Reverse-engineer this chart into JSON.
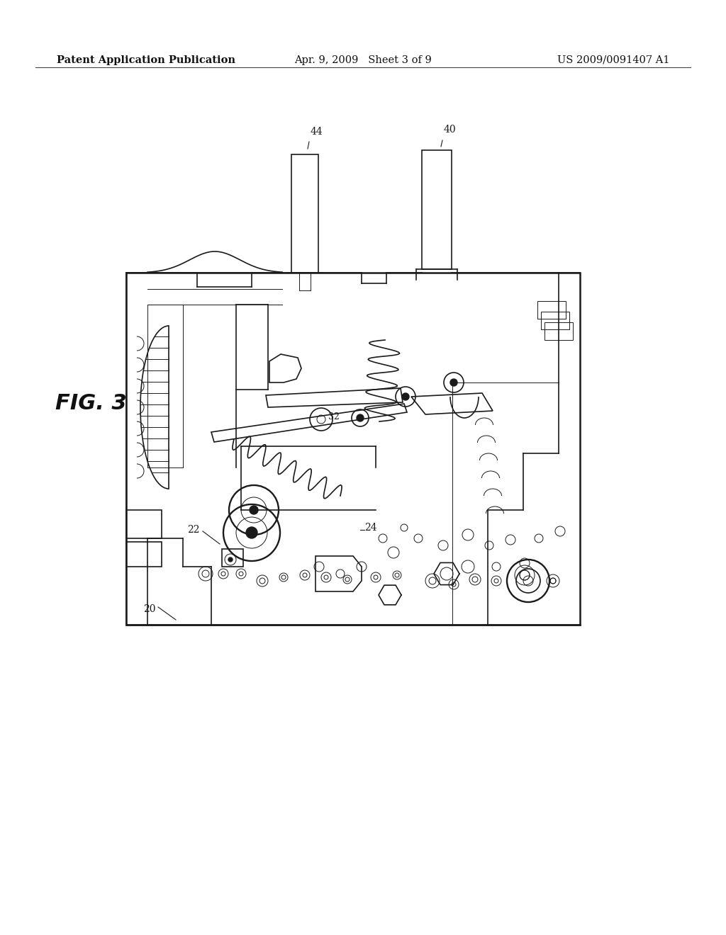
{
  "background_color": "#ffffff",
  "header_left": "Patent Application Publication",
  "header_center": "Apr. 9, 2009   Sheet 3 of 9",
  "header_right": "US 2009/0091407 A1",
  "header_fontsize": 10.5,
  "fig_label": "FIG. 3",
  "fig_label_fontsize": 22,
  "line_color": "#1a1a1a",
  "lw_main": 1.2,
  "lw_thin": 0.7,
  "lw_thick": 1.8
}
